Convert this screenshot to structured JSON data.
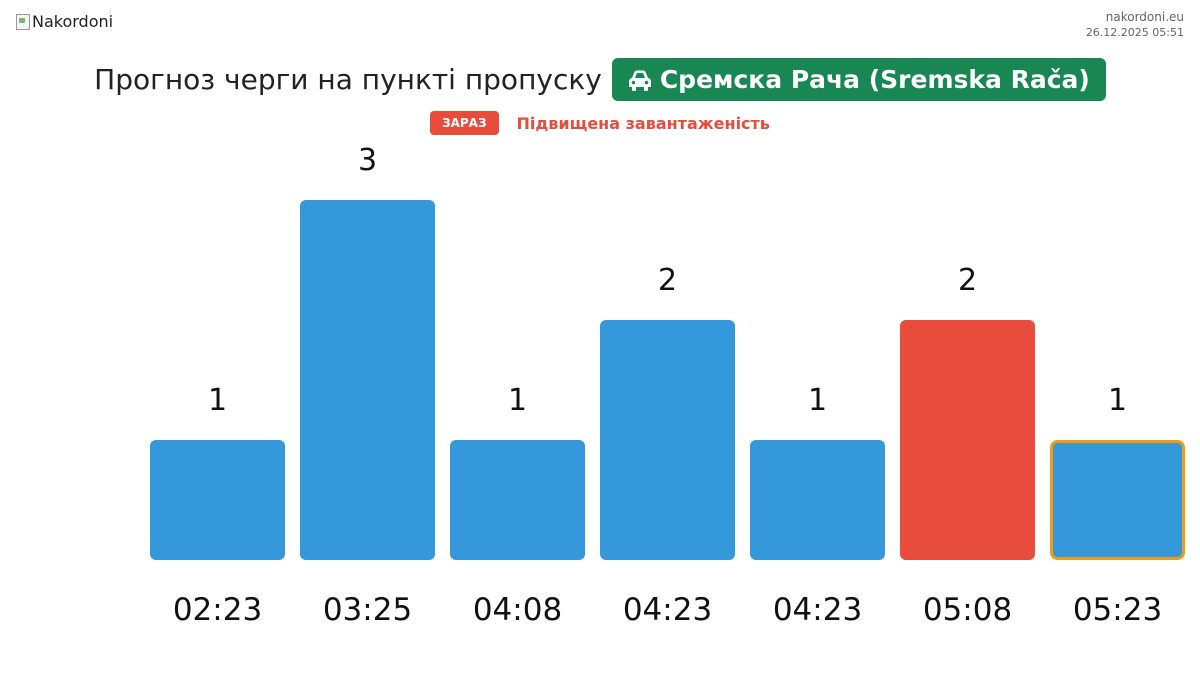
{
  "header": {
    "logo_alt": "Nakordoni",
    "site": "nakordoni.eu",
    "datetime": "26.12.2025 05:51"
  },
  "title": {
    "text": "Прогноз черги на пункті пропуску",
    "crossing": "Сремска Рача (Sremska Rača)",
    "crossing_icon": "car-icon"
  },
  "status": {
    "badge": "ЗАРАЗ",
    "text": "Підвищена завантаженість"
  },
  "colors": {
    "bar": "#3498db",
    "bar_alert": "#e74c3c",
    "highlight_border": "#f39c12",
    "badge_green": "#198754",
    "badge_red": "#e74c3c"
  },
  "chart_data": {
    "type": "bar",
    "categories": [
      "02:23",
      "03:25",
      "04:08",
      "04:23",
      "04:23",
      "05:08",
      "05:23"
    ],
    "values": [
      1,
      3,
      1,
      2,
      1,
      2,
      1
    ],
    "data_labels": [
      "1",
      "3",
      "1",
      "2",
      "1",
      "2",
      "1"
    ],
    "alert_index": 5,
    "current_index": 6,
    "ylim": [
      0,
      3
    ],
    "grid": false,
    "legend": "none"
  }
}
